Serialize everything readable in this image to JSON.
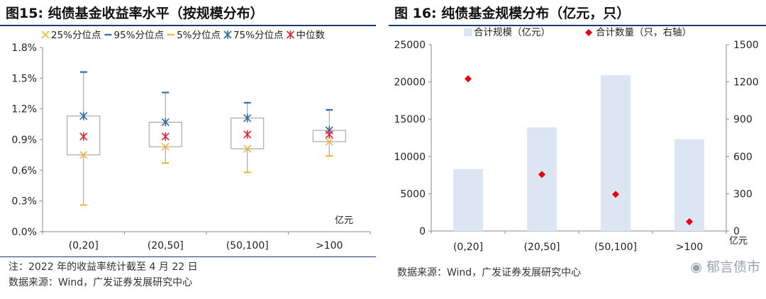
{
  "left": {
    "title": "图15:  纯债基金收益率水平（按规模分布）",
    "note": "注：2022 年的收益率统计截至 4 月 22 日",
    "source": "数据来源：Wind，广发证券发展研究中心"
  },
  "right": {
    "title": "图 16:  纯债基金规模分布（亿元，只）",
    "source": "数据来源：Wind，广发证券发展研究中心",
    "watermark": "郁言债市"
  },
  "colors": {
    "box_line": "#999999",
    "p25": "#f0b63c",
    "p95": "#2e6da4",
    "p5": "#f0b63c",
    "p75": "#2e6da4",
    "median": "#e8242e",
    "bar_fill": "#dce6f2",
    "diamond": "#e8000b",
    "rule": "#1f3c72"
  },
  "chart_data": [
    {
      "type": "box",
      "categories": [
        "(0,20]",
        "(20,50]",
        "(50,100]",
        ">100"
      ],
      "ylim": [
        0,
        1.8
      ],
      "yticks": [
        "0.0%",
        "0.3%",
        "0.6%",
        "0.9%",
        "1.2%",
        "1.5%",
        "1.8%"
      ],
      "xunit": "亿元",
      "legend": [
        {
          "key": "p25",
          "label": "25%分位点",
          "marker": "x"
        },
        {
          "key": "p95",
          "label": "95%分位点",
          "marker": "dash"
        },
        {
          "key": "p5",
          "label": "5%分位点",
          "marker": "dash"
        },
        {
          "key": "p75",
          "label": "75%分位点",
          "marker": "star"
        },
        {
          "key": "median",
          "label": "中位数",
          "marker": "star"
        }
      ],
      "series": [
        {
          "key": "p5",
          "values": [
            0.26,
            0.67,
            0.58,
            0.74
          ]
        },
        {
          "key": "p25",
          "values": [
            0.75,
            0.83,
            0.81,
            0.88
          ]
        },
        {
          "key": "median",
          "values": [
            0.93,
            0.93,
            0.95,
            0.95
          ]
        },
        {
          "key": "p75",
          "values": [
            1.13,
            1.07,
            1.11,
            0.99
          ]
        },
        {
          "key": "p95",
          "values": [
            1.56,
            1.36,
            1.26,
            1.19
          ]
        }
      ]
    },
    {
      "type": "bar+scatter",
      "categories": [
        "(0,20]",
        "(20,50]",
        "(50,100]",
        ">100"
      ],
      "xunit": "亿元",
      "series": [
        {
          "name": "合计规模（亿元）",
          "type": "bar",
          "axis": "left",
          "values": [
            8300,
            13900,
            20900,
            12300
          ]
        },
        {
          "name": "合计数量（只，右轴）",
          "type": "scatter",
          "axis": "right",
          "values": [
            1225,
            455,
            295,
            75
          ]
        }
      ],
      "ylim_left": [
        0,
        25000
      ],
      "yticks_left": [
        "0",
        "5000",
        "10000",
        "15000",
        "20000",
        "25000"
      ],
      "ylim_right": [
        0,
        1500
      ],
      "yticks_right": [
        "0",
        "300",
        "600",
        "900",
        "1200",
        "1500"
      ]
    }
  ]
}
